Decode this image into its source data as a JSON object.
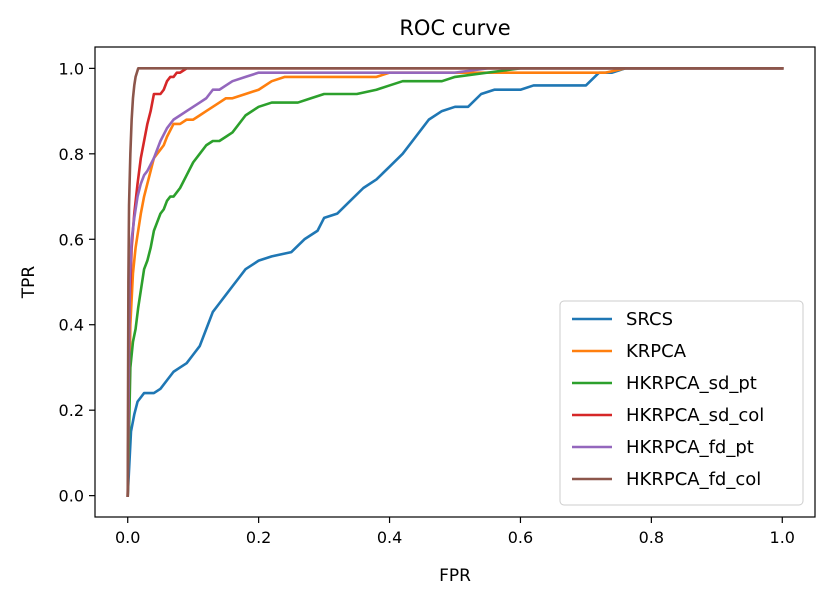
{
  "chart_data": {
    "type": "line",
    "title": "ROC curve",
    "xlabel": "FPR",
    "ylabel": "TPR",
    "xlim": [
      -0.05,
      1.05
    ],
    "ylim": [
      -0.05,
      1.05
    ],
    "xticks": [
      0.0,
      0.2,
      0.4,
      0.6,
      0.8,
      1.0
    ],
    "xtick_labels": [
      "0.0",
      "0.2",
      "0.4",
      "0.6",
      "0.8",
      "1.0"
    ],
    "yticks": [
      0.0,
      0.2,
      0.4,
      0.6,
      0.8,
      1.0
    ],
    "ytick_labels": [
      "0.0",
      "0.2",
      "0.4",
      "0.6",
      "0.8",
      "1.0"
    ],
    "grid": false,
    "legend_position": "lower-right",
    "series": [
      {
        "name": "SRCS",
        "color": "#1f77b4",
        "x": [
          0.0,
          0.005,
          0.01,
          0.015,
          0.02,
          0.025,
          0.03,
          0.04,
          0.05,
          0.06,
          0.07,
          0.08,
          0.09,
          0.1,
          0.11,
          0.12,
          0.13,
          0.14,
          0.15,
          0.16,
          0.17,
          0.18,
          0.19,
          0.2,
          0.22,
          0.25,
          0.27,
          0.29,
          0.3,
          0.32,
          0.34,
          0.36,
          0.38,
          0.4,
          0.42,
          0.44,
          0.46,
          0.48,
          0.5,
          0.52,
          0.54,
          0.56,
          0.58,
          0.6,
          0.62,
          0.64,
          0.66,
          0.68,
          0.7,
          0.72,
          0.74,
          0.76,
          1.0
        ],
        "y": [
          0.0,
          0.15,
          0.19,
          0.22,
          0.23,
          0.24,
          0.24,
          0.24,
          0.25,
          0.27,
          0.29,
          0.3,
          0.31,
          0.33,
          0.35,
          0.39,
          0.43,
          0.45,
          0.47,
          0.49,
          0.51,
          0.53,
          0.54,
          0.55,
          0.56,
          0.57,
          0.6,
          0.62,
          0.65,
          0.66,
          0.69,
          0.72,
          0.74,
          0.77,
          0.8,
          0.84,
          0.88,
          0.9,
          0.91,
          0.91,
          0.94,
          0.95,
          0.95,
          0.95,
          0.96,
          0.96,
          0.96,
          0.96,
          0.96,
          0.99,
          0.99,
          1.0,
          1.0
        ]
      },
      {
        "name": "KRPCA",
        "color": "#ff7f0e",
        "x": [
          0.0,
          0.004,
          0.008,
          0.012,
          0.016,
          0.02,
          0.025,
          0.03,
          0.035,
          0.04,
          0.05,
          0.055,
          0.06,
          0.07,
          0.08,
          0.09,
          0.1,
          0.11,
          0.12,
          0.13,
          0.14,
          0.15,
          0.16,
          0.18,
          0.2,
          0.22,
          0.24,
          0.26,
          0.28,
          0.3,
          0.35,
          0.38,
          0.4,
          0.45,
          0.5,
          0.55,
          0.6,
          0.65,
          0.7,
          0.73,
          0.76,
          1.0
        ],
        "y": [
          0.0,
          0.4,
          0.52,
          0.58,
          0.62,
          0.66,
          0.7,
          0.73,
          0.76,
          0.79,
          0.81,
          0.82,
          0.84,
          0.87,
          0.87,
          0.88,
          0.88,
          0.89,
          0.9,
          0.91,
          0.92,
          0.93,
          0.93,
          0.94,
          0.95,
          0.97,
          0.98,
          0.98,
          0.98,
          0.98,
          0.98,
          0.98,
          0.99,
          0.99,
          0.99,
          0.99,
          0.99,
          0.99,
          0.99,
          0.99,
          1.0,
          1.0
        ]
      },
      {
        "name": "HKRPCA_sd_pt",
        "color": "#2ca02c",
        "x": [
          0.0,
          0.004,
          0.008,
          0.012,
          0.016,
          0.02,
          0.025,
          0.03,
          0.035,
          0.04,
          0.045,
          0.05,
          0.055,
          0.06,
          0.065,
          0.07,
          0.08,
          0.09,
          0.1,
          0.11,
          0.12,
          0.13,
          0.14,
          0.15,
          0.16,
          0.18,
          0.2,
          0.22,
          0.24,
          0.26,
          0.28,
          0.3,
          0.32,
          0.35,
          0.38,
          0.4,
          0.42,
          0.45,
          0.48,
          0.5,
          0.55,
          0.6,
          0.7,
          1.0
        ],
        "y": [
          0.0,
          0.3,
          0.36,
          0.39,
          0.44,
          0.48,
          0.53,
          0.55,
          0.58,
          0.62,
          0.64,
          0.66,
          0.67,
          0.69,
          0.7,
          0.7,
          0.72,
          0.75,
          0.78,
          0.8,
          0.82,
          0.83,
          0.83,
          0.84,
          0.85,
          0.89,
          0.91,
          0.92,
          0.92,
          0.92,
          0.93,
          0.94,
          0.94,
          0.94,
          0.95,
          0.96,
          0.97,
          0.97,
          0.97,
          0.98,
          0.99,
          1.0,
          1.0,
          1.0
        ]
      },
      {
        "name": "HKRPCA_sd_col",
        "color": "#d62728",
        "x": [
          0.0,
          0.003,
          0.006,
          0.01,
          0.015,
          0.02,
          0.025,
          0.03,
          0.035,
          0.04,
          0.05,
          0.055,
          0.06,
          0.065,
          0.07,
          0.075,
          0.08,
          0.09,
          0.1,
          1.0
        ],
        "y": [
          0.0,
          0.45,
          0.58,
          0.66,
          0.73,
          0.79,
          0.83,
          0.87,
          0.9,
          0.94,
          0.94,
          0.95,
          0.97,
          0.98,
          0.98,
          0.99,
          0.99,
          1.0,
          1.0,
          1.0
        ]
      },
      {
        "name": "HKRPCA_fd_pt",
        "color": "#9467bd",
        "x": [
          0.0,
          0.003,
          0.006,
          0.01,
          0.015,
          0.02,
          0.025,
          0.03,
          0.04,
          0.05,
          0.06,
          0.07,
          0.08,
          0.09,
          0.1,
          0.11,
          0.12,
          0.13,
          0.14,
          0.15,
          0.16,
          0.18,
          0.2,
          0.22,
          0.24,
          0.3,
          0.35,
          0.4,
          0.45,
          0.5,
          0.55,
          0.6,
          0.7,
          1.0
        ],
        "y": [
          0.0,
          0.5,
          0.6,
          0.65,
          0.7,
          0.73,
          0.75,
          0.76,
          0.79,
          0.83,
          0.86,
          0.88,
          0.89,
          0.9,
          0.91,
          0.92,
          0.93,
          0.95,
          0.95,
          0.96,
          0.97,
          0.98,
          0.99,
          0.99,
          0.99,
          0.99,
          0.99,
          0.99,
          0.99,
          0.99,
          1.0,
          1.0,
          1.0,
          1.0
        ]
      },
      {
        "name": "HKRPCA_fd_col",
        "color": "#8c564b",
        "x": [
          0.0,
          0.001,
          0.002,
          0.004,
          0.006,
          0.008,
          0.01,
          0.012,
          0.014,
          0.016,
          0.02,
          0.05,
          0.1,
          0.5,
          1.0
        ],
        "y": [
          0.0,
          0.5,
          0.68,
          0.8,
          0.88,
          0.93,
          0.96,
          0.98,
          0.99,
          1.0,
          1.0,
          1.0,
          1.0,
          1.0,
          1.0
        ]
      }
    ]
  }
}
